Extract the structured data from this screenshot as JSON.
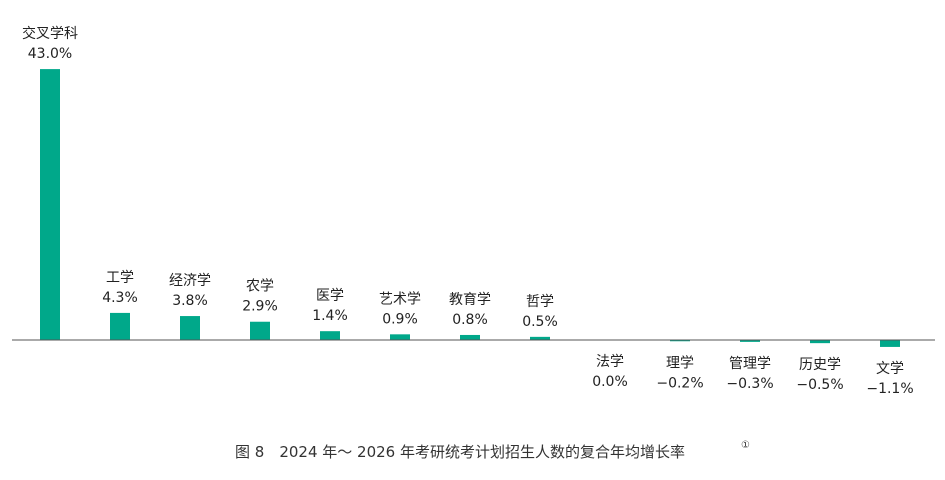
{
  "chart_data": {
    "type": "bar",
    "title": "",
    "xlabel": "",
    "ylabel": "",
    "categories": [
      "交叉学科",
      "工学",
      "经济学",
      "农学",
      "医学",
      "艺术学",
      "教育学",
      "哲学",
      "法学",
      "理学",
      "管理学",
      "历史学",
      "文学"
    ],
    "values": [
      43.0,
      4.3,
      3.8,
      2.9,
      1.4,
      0.9,
      0.8,
      0.5,
      0.0,
      -0.2,
      -0.3,
      -0.5,
      -1.1
    ],
    "value_labels": [
      "43.0%",
      "4.3%",
      "3.8%",
      "2.9%",
      "1.4%",
      "0.9%",
      "0.8%",
      "0.5%",
      "0.0%",
      "−0.2%",
      "−0.3%",
      "−0.5%",
      "−1.1%"
    ],
    "unit": "%",
    "ylim": [
      -3,
      43.5
    ],
    "grid": false,
    "legend": "none",
    "bar_color": "#00A88A",
    "axis_color": "#555555"
  },
  "caption": {
    "text": "图 8　2024 年～ 2026 年考研统考计划招生人数的复合年均增长率",
    "footnote_mark": "①"
  }
}
